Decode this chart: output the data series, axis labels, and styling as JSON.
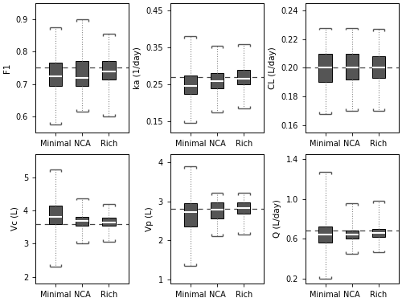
{
  "panels": [
    {
      "ylabel": "F1",
      "dashed_line": 0.75,
      "ylim": [
        0.55,
        0.95
      ],
      "yticks": [
        0.6,
        0.7,
        0.8,
        0.9
      ],
      "groups": [
        "Minimal",
        "NCA",
        "Rich"
      ],
      "boxes": [
        {
          "median": 0.725,
          "q1": 0.695,
          "q3": 0.765,
          "whislo": 0.575,
          "whishi": 0.875
        },
        {
          "median": 0.72,
          "q1": 0.695,
          "q3": 0.77,
          "whislo": 0.615,
          "whishi": 0.9
        },
        {
          "median": 0.74,
          "q1": 0.715,
          "q3": 0.77,
          "whislo": 0.6,
          "whishi": 0.855
        }
      ]
    },
    {
      "ylabel": "ka (1/day)",
      "dashed_line": 0.27,
      "ylim": [
        0.12,
        0.47
      ],
      "yticks": [
        0.15,
        0.25,
        0.35,
        0.45
      ],
      "groups": [
        "Minimal",
        "NCA",
        "Rich"
      ],
      "boxes": [
        {
          "median": 0.245,
          "q1": 0.225,
          "q3": 0.275,
          "whislo": 0.145,
          "whishi": 0.38
        },
        {
          "median": 0.26,
          "q1": 0.24,
          "q3": 0.28,
          "whislo": 0.175,
          "whishi": 0.355
        },
        {
          "median": 0.265,
          "q1": 0.25,
          "q3": 0.29,
          "whislo": 0.185,
          "whishi": 0.36
        }
      ]
    },
    {
      "ylabel": "CL (L/day)",
      "dashed_line": 0.2,
      "ylim": [
        0.155,
        0.245
      ],
      "yticks": [
        0.16,
        0.18,
        0.2,
        0.22,
        0.24
      ],
      "groups": [
        "Minimal",
        "NCA",
        "Rich"
      ],
      "boxes": [
        {
          "median": 0.2,
          "q1": 0.19,
          "q3": 0.21,
          "whislo": 0.168,
          "whishi": 0.228
        },
        {
          "median": 0.2,
          "q1": 0.192,
          "q3": 0.21,
          "whislo": 0.17,
          "whishi": 0.228
        },
        {
          "median": 0.2,
          "q1": 0.193,
          "q3": 0.208,
          "whislo": 0.17,
          "whishi": 0.227
        }
      ]
    },
    {
      "ylabel": "Vc (L)",
      "dashed_line": 3.6,
      "ylim": [
        1.8,
        5.7
      ],
      "yticks": [
        2.0,
        3.0,
        4.0,
        5.0
      ],
      "groups": [
        "Minimal",
        "NCA",
        "Rich"
      ],
      "boxes": [
        {
          "median": 3.8,
          "q1": 3.6,
          "q3": 4.15,
          "whislo": 2.3,
          "whishi": 5.25
        },
        {
          "median": 3.7,
          "q1": 3.55,
          "q3": 3.82,
          "whislo": 3.0,
          "whishi": 4.38
        },
        {
          "median": 3.65,
          "q1": 3.55,
          "q3": 3.78,
          "whislo": 3.05,
          "whishi": 4.2
        }
      ]
    },
    {
      "ylabel": "Vp (L)",
      "dashed_line": 2.8,
      "ylim": [
        0.9,
        4.2
      ],
      "yticks": [
        1.0,
        2.0,
        3.0,
        4.0
      ],
      "groups": [
        "Minimal",
        "NCA",
        "Rich"
      ],
      "boxes": [
        {
          "median": 2.72,
          "q1": 2.35,
          "q3": 2.95,
          "whislo": 1.35,
          "whishi": 3.9
        },
        {
          "median": 2.78,
          "q1": 2.55,
          "q3": 2.98,
          "whislo": 2.1,
          "whishi": 3.22
        },
        {
          "median": 2.82,
          "q1": 2.68,
          "q3": 2.98,
          "whislo": 2.15,
          "whishi": 3.22
        }
      ]
    },
    {
      "ylabel": "Q (L/day)",
      "dashed_line": 0.68,
      "ylim": [
        0.15,
        1.45
      ],
      "yticks": [
        0.2,
        0.6,
        1.0,
        1.4
      ],
      "groups": [
        "Minimal",
        "NCA",
        "Rich"
      ],
      "boxes": [
        {
          "median": 0.64,
          "q1": 0.56,
          "q3": 0.72,
          "whislo": 0.2,
          "whishi": 1.27
        },
        {
          "median": 0.64,
          "q1": 0.6,
          "q3": 0.68,
          "whislo": 0.45,
          "whishi": 0.96
        },
        {
          "median": 0.66,
          "q1": 0.62,
          "q3": 0.7,
          "whislo": 0.46,
          "whishi": 0.98
        }
      ]
    }
  ],
  "box_color": "#555555",
  "median_color": "#ffffff",
  "whisker_color": "#555555",
  "background_color": "#ffffff",
  "figsize": [
    5.0,
    3.76
  ],
  "dpi": 100
}
